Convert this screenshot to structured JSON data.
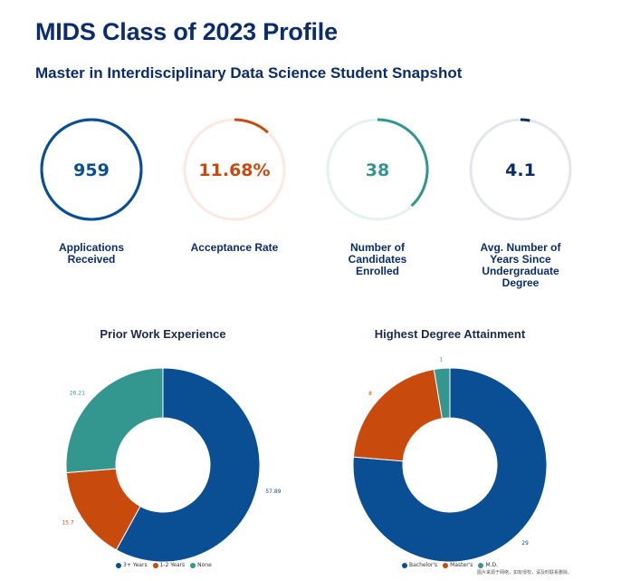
{
  "header": {
    "title": "MIDS Class of 2023 Profile",
    "subtitle": "Master in Interdisciplinary Data Science Student Snapshot"
  },
  "stats": [
    {
      "value": "959",
      "label": "Applications Received",
      "progress": 1.0,
      "color": "#0a4f94",
      "track": "#0a4f94"
    },
    {
      "value": "11.68%",
      "label": "Acceptance Rate",
      "progress": 0.1168,
      "color": "#c84a0c",
      "track": "#fbe9e0"
    },
    {
      "value": "38",
      "label": "Number of Candidates Enrolled",
      "progress": 0.38,
      "color": "#33968f",
      "track": "#e3f1ef"
    },
    {
      "value": "4.1",
      "label": "Avg. Number of Years Since Undergraduate Degree",
      "progress": 0.03,
      "color": "#0b2d6b",
      "track": "#e4e6ee"
    }
  ],
  "chart_data": [
    {
      "type": "pie",
      "title": "Prior Work Experience",
      "categories": [
        "3+ Years",
        "1-2 Years",
        "None"
      ],
      "values": [
        57.89,
        15.7,
        26.21
      ],
      "colors": [
        "#0a4f94",
        "#c84a0c",
        "#33968f"
      ],
      "data_labels": [
        "57.89",
        "15.7",
        "26.21"
      ],
      "legend_position": "bottom"
    },
    {
      "type": "pie",
      "title": "Highest Degree Attainment",
      "categories": [
        "Bachelor's",
        "Master's",
        "M.D."
      ],
      "values": [
        29,
        8,
        1
      ],
      "colors": [
        "#0a4f94",
        "#c84a0c",
        "#33968f"
      ],
      "data_labels": [
        "29",
        "8",
        "1"
      ],
      "legend_position": "bottom"
    }
  ],
  "watermark": "图片来源于网络，如有侵权，请及时联系删除。"
}
